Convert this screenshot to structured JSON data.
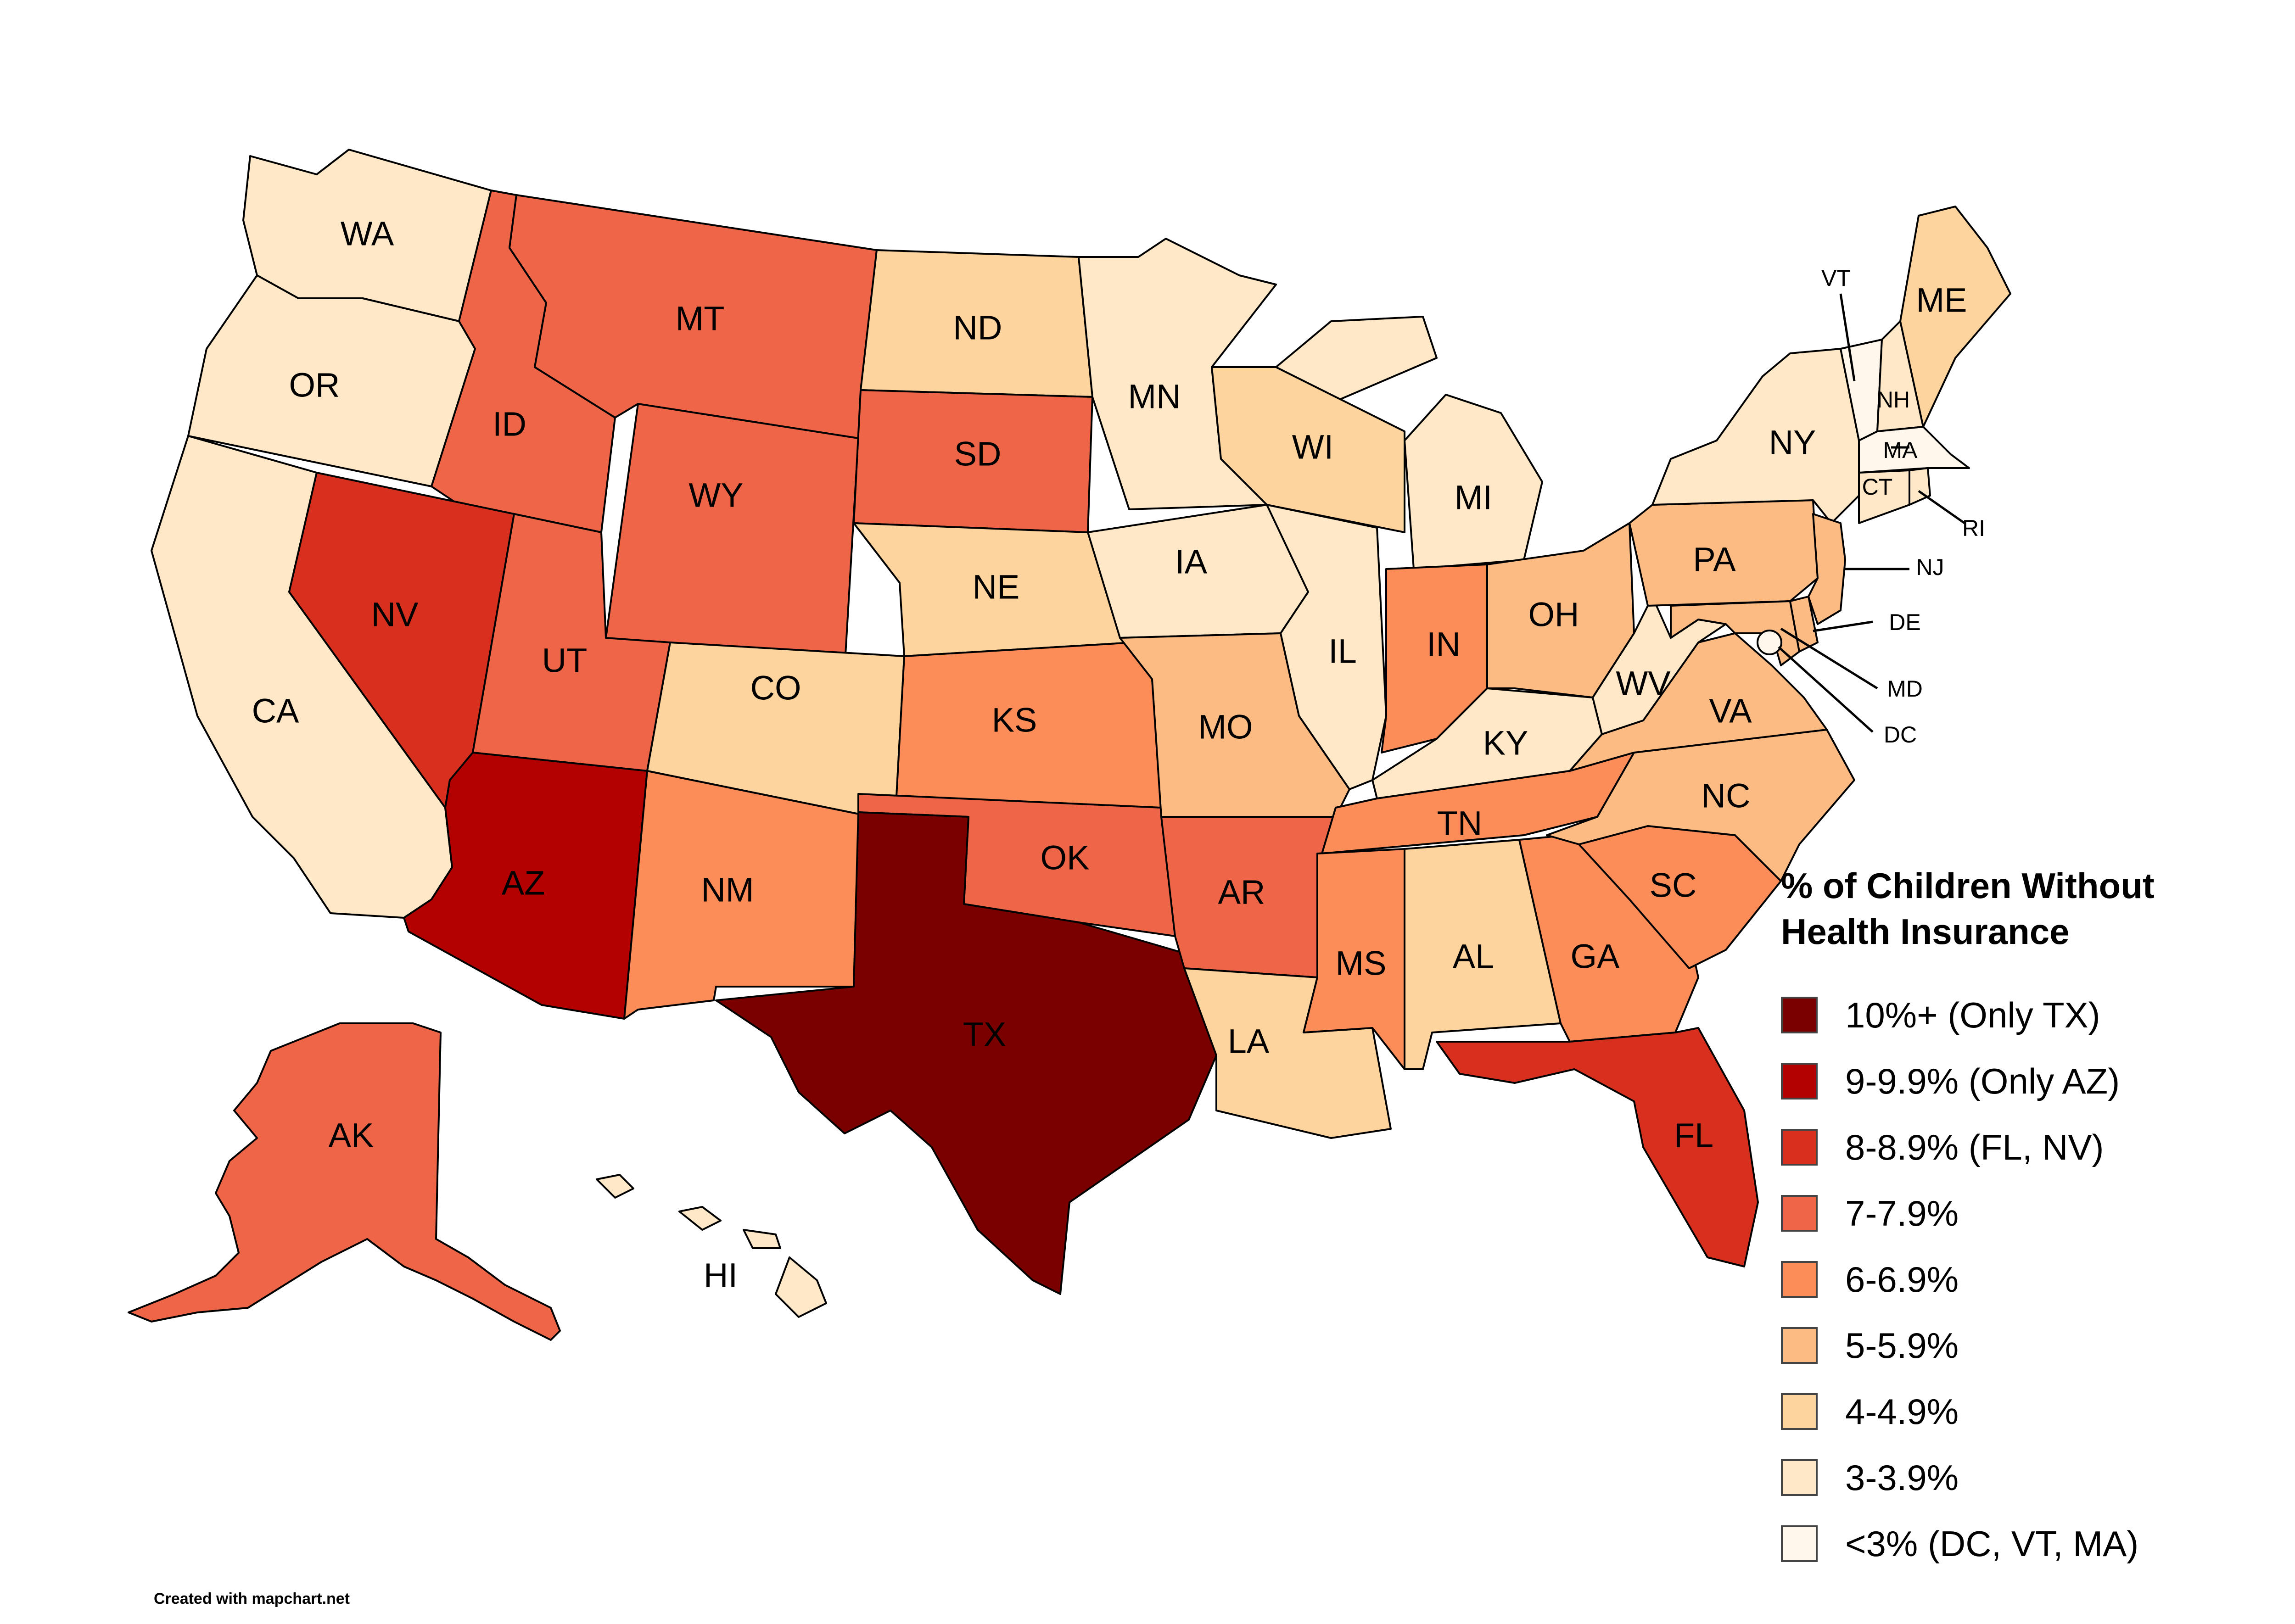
{
  "legend": {
    "title_line1": "% of Children Without",
    "title_line2": "Health Insurance",
    "items": [
      {
        "label": "10%+ (Only TX)",
        "color": "#7a0000"
      },
      {
        "label": "9-9.9% (Only AZ)",
        "color": "#b30000"
      },
      {
        "label": "8-8.9% (FL, NV)",
        "color": "#d7301f"
      },
      {
        "label": "7-7.9%",
        "color": "#ef6548"
      },
      {
        "label": "6-6.9%",
        "color": "#fc8d59"
      },
      {
        "label": "5-5.9%",
        "color": "#fdbb84"
      },
      {
        "label": "4-4.9%",
        "color": "#fdd49e"
      },
      {
        "label": "3-3.9%",
        "color": "#fee8c8"
      },
      {
        "label": "<3% (DC, VT, MA)",
        "color": "#fff7ec"
      }
    ]
  },
  "states": [
    {
      "code": "WA",
      "bin": 7
    },
    {
      "code": "OR",
      "bin": 7
    },
    {
      "code": "CA",
      "bin": 7
    },
    {
      "code": "ID",
      "bin": 3
    },
    {
      "code": "MT",
      "bin": 3
    },
    {
      "code": "WY",
      "bin": 3
    },
    {
      "code": "NV",
      "bin": 2
    },
    {
      "code": "UT",
      "bin": 3
    },
    {
      "code": "AZ",
      "bin": 1
    },
    {
      "code": "CO",
      "bin": 6
    },
    {
      "code": "NM",
      "bin": 4
    },
    {
      "code": "ND",
      "bin": 6
    },
    {
      "code": "SD",
      "bin": 3
    },
    {
      "code": "NE",
      "bin": 6
    },
    {
      "code": "KS",
      "bin": 4
    },
    {
      "code": "OK",
      "bin": 3
    },
    {
      "code": "TX",
      "bin": 0
    },
    {
      "code": "MN",
      "bin": 7
    },
    {
      "code": "IA",
      "bin": 7
    },
    {
      "code": "MO",
      "bin": 5
    },
    {
      "code": "AR",
      "bin": 3
    },
    {
      "code": "LA",
      "bin": 6
    },
    {
      "code": "WI",
      "bin": 6
    },
    {
      "code": "IL",
      "bin": 7
    },
    {
      "code": "MI",
      "bin": 7
    },
    {
      "code": "IN",
      "bin": 4
    },
    {
      "code": "OH",
      "bin": 5
    },
    {
      "code": "KY",
      "bin": 7
    },
    {
      "code": "TN",
      "bin": 4
    },
    {
      "code": "MS",
      "bin": 4
    },
    {
      "code": "AL",
      "bin": 6
    },
    {
      "code": "GA",
      "bin": 4
    },
    {
      "code": "FL",
      "bin": 2
    },
    {
      "code": "SC",
      "bin": 4
    },
    {
      "code": "NC",
      "bin": 5
    },
    {
      "code": "VA",
      "bin": 5
    },
    {
      "code": "WV",
      "bin": 7
    },
    {
      "code": "PA",
      "bin": 5
    },
    {
      "code": "NY",
      "bin": 7
    },
    {
      "code": "ME",
      "bin": 6
    },
    {
      "code": "VT",
      "bin": 8
    },
    {
      "code": "NH",
      "bin": 7
    },
    {
      "code": "MA",
      "bin": 8
    },
    {
      "code": "CT",
      "bin": 7
    },
    {
      "code": "RI",
      "bin": 7
    },
    {
      "code": "NJ",
      "bin": 5
    },
    {
      "code": "DE",
      "bin": 5
    },
    {
      "code": "MD",
      "bin": 5
    },
    {
      "code": "DC",
      "bin": 8
    },
    {
      "code": "AK",
      "bin": 3
    },
    {
      "code": "HI",
      "bin": 7
    }
  ],
  "credit": "Created with mapchart.net"
}
